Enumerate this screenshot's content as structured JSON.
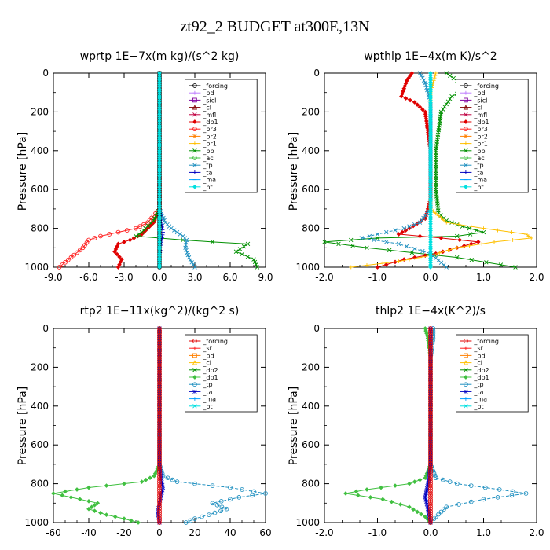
{
  "title": "zt92_2  BUDGET at300E,13N",
  "chart_data": [
    {
      "type": "line",
      "title": "wprtp   1E−7x(m kg)/(s^2 kg)",
      "ylabel": "Pressure [hPa]",
      "xlim": [
        -9,
        9
      ],
      "ylim": [
        1000,
        0
      ],
      "xticks": [
        "-9.0",
        "-6.0",
        "-3.0",
        "0.0",
        "3.0",
        "6.0",
        "9.0"
      ],
      "yticks": [
        "0",
        "200",
        "400",
        "600",
        "800",
        "1000"
      ],
      "legend": [
        "_forcing",
        "_pd",
        "_sicl",
        "_cl",
        "_mfl",
        "_dp1",
        "_pr3",
        "_pr2",
        "_pr1",
        "_bp",
        "_ac",
        "_tp",
        "_ta",
        "_ma",
        "_bt"
      ],
      "colors": [
        "#000000",
        "#c080ff",
        "#8000a0",
        "#800000",
        "#c00040",
        "#e00000",
        "#ff2020",
        "#ff8000",
        "#ffc000",
        "#009000",
        "#40c040",
        "#2090c0",
        "#0000c0",
        "#00a0ff",
        "#00e0e0"
      ],
      "series": [
        {
          "name": "_dp1",
          "x": [
            0,
            0,
            0,
            0,
            -0.5,
            -1,
            -1.5,
            -2.5,
            -3.5,
            -3.8,
            -3.2,
            -3.5
          ],
          "y": [
            0,
            200,
            400,
            700,
            770,
            800,
            830,
            860,
            880,
            920,
            960,
            1000
          ]
        },
        {
          "name": "_pr3",
          "x": [
            0,
            0,
            0,
            0,
            -1,
            -2,
            -3.5,
            -5,
            -6,
            -6.5,
            -7.5,
            -8.5
          ],
          "y": [
            0,
            200,
            400,
            700,
            770,
            800,
            820,
            840,
            860,
            900,
            950,
            1000
          ]
        },
        {
          "name": "_bp",
          "x": [
            0,
            0,
            0,
            0,
            -0.5,
            -1.2,
            -1.5,
            -2,
            2,
            4.5,
            7.5,
            6.5,
            8,
            8.3
          ],
          "y": [
            0,
            200,
            400,
            700,
            760,
            800,
            820,
            840,
            860,
            870,
            880,
            920,
            960,
            1000
          ]
        },
        {
          "name": "_tp",
          "x": [
            0,
            0,
            0,
            0,
            0.5,
            1,
            1.5,
            2,
            2.3,
            2.2,
            2.5,
            3
          ],
          "y": [
            0,
            200,
            400,
            700,
            770,
            800,
            820,
            840,
            860,
            900,
            950,
            1000
          ]
        },
        {
          "name": "_ta",
          "x": [
            0,
            0,
            0,
            0,
            0.2,
            0.3,
            0.2,
            0.1,
            0,
            0
          ],
          "y": [
            0,
            200,
            400,
            700,
            780,
            820,
            860,
            900,
            950,
            1000
          ]
        },
        {
          "name": "_forcing",
          "x": [
            0,
            0,
            0,
            0,
            0,
            0
          ],
          "y": [
            0,
            200,
            400,
            600,
            800,
            1000
          ]
        },
        {
          "name": "_bt",
          "x": [
            0,
            0,
            0,
            0,
            0,
            0
          ],
          "y": [
            0,
            200,
            400,
            600,
            800,
            1000
          ]
        }
      ]
    },
    {
      "type": "line",
      "title": "wpthlp   1E−4x(m K)/s^2",
      "ylabel": "Pressure [hPa]",
      "xlim": [
        -2,
        2
      ],
      "ylim": [
        1000,
        0
      ],
      "xticks": [
        "-2.0",
        "-1.0",
        "0.0",
        "1.0",
        "2.0"
      ],
      "yticks": [
        "0",
        "200",
        "400",
        "600",
        "800",
        "1000"
      ],
      "legend": [
        "_forcing",
        "_pd",
        "_sicl",
        "_cl",
        "_mfl",
        "_dp1",
        "_pr3",
        "_pr2",
        "_pr1",
        "_bp",
        "_ac",
        "_tp",
        "_ta",
        "_ma",
        "_bt"
      ],
      "colors": [
        "#000000",
        "#c080ff",
        "#8000a0",
        "#800000",
        "#c00040",
        "#e00000",
        "#ff2020",
        "#ff8000",
        "#ffc000",
        "#009000",
        "#40c040",
        "#2090c0",
        "#0000c0",
        "#00a0ff",
        "#00e0e0"
      ],
      "series": [
        {
          "name": "_bp",
          "x": [
            0.3,
            0.5,
            0.7,
            0.4,
            0.3,
            0.2,
            0.1,
            0.1,
            0.15,
            0.3,
            0.6,
            1,
            0.5,
            -1,
            -2,
            -1.2,
            0.5,
            1.6
          ],
          "y": [
            0,
            40,
            80,
            120,
            160,
            200,
            400,
            600,
            720,
            760,
            790,
            820,
            840,
            850,
            870,
            900,
            950,
            1000
          ]
        },
        {
          "name": "_dp1",
          "x": [
            -0.35,
            -0.45,
            -0.5,
            -0.55,
            -0.3,
            -0.1,
            0,
            0,
            -0.1,
            -0.4,
            -0.6,
            0.2,
            0.9,
            0.5,
            0.1,
            -0.5,
            -1
          ],
          "y": [
            0,
            40,
            80,
            120,
            150,
            200,
            400,
            650,
            750,
            800,
            830,
            850,
            870,
            900,
            930,
            960,
            1000
          ]
        },
        {
          "name": "_pr1",
          "x": [
            0.1,
            0,
            0,
            0,
            0,
            0,
            0.3,
            1,
            1.8,
            1.9,
            1.2,
            0.5,
            0,
            -0.6,
            -1.5
          ],
          "y": [
            0,
            100,
            200,
            400,
            600,
            700,
            770,
            800,
            830,
            850,
            870,
            900,
            940,
            970,
            1000
          ]
        },
        {
          "name": "_tp",
          "x": [
            -0.2,
            -0.1,
            -0.05,
            0,
            0,
            0,
            -0.2,
            -0.5,
            -1,
            -1.3,
            -0.6,
            0,
            0.3
          ],
          "y": [
            0,
            50,
            100,
            150,
            400,
            700,
            770,
            800,
            830,
            850,
            880,
            930,
            1000
          ]
        },
        {
          "name": "_pd",
          "x": [
            0,
            0,
            0,
            0,
            0,
            0
          ],
          "y": [
            0,
            200,
            400,
            600,
            800,
            1000
          ]
        },
        {
          "name": "_bt",
          "x": [
            0,
            0,
            0,
            0,
            0,
            0
          ],
          "y": [
            0,
            200,
            400,
            600,
            800,
            1000
          ]
        }
      ]
    },
    {
      "type": "line",
      "title": "rtp2   1E−11x(kg^2)/(kg^2 s)",
      "ylabel": "Pressure [hPa]",
      "xlim": [
        -60,
        60
      ],
      "ylim": [
        1000,
        0
      ],
      "xticks": [
        "-60",
        "-40",
        "-20",
        "0",
        "20",
        "40",
        "60"
      ],
      "yticks": [
        "0",
        "200",
        "400",
        "600",
        "800",
        "1000"
      ],
      "legend": [
        "_forcing",
        "_sf",
        "_pd",
        "_cl",
        "_dp2",
        "_dp1",
        "_tp",
        "_ta",
        "_ma",
        "_bt"
      ],
      "colors": [
        "#e00000",
        "#ff2020",
        "#ff8000",
        "#ffc000",
        "#009000",
        "#40c040",
        "#2090c0",
        "#0000c0",
        "#00a0ff",
        "#00e0e0"
      ],
      "series": [
        {
          "name": "_dp1",
          "x": [
            0,
            0,
            0,
            0,
            -3,
            -10,
            -40,
            -60,
            -50,
            -35,
            -40,
            -30,
            -20,
            -12
          ],
          "y": [
            0,
            200,
            400,
            700,
            760,
            790,
            820,
            850,
            870,
            900,
            930,
            960,
            980,
            1000
          ]
        },
        {
          "name": "_tp",
          "x": [
            0,
            0,
            0,
            0,
            2,
            10,
            40,
            60,
            45,
            30,
            38,
            28,
            20,
            15
          ],
          "y": [
            0,
            200,
            400,
            700,
            760,
            790,
            820,
            850,
            870,
            900,
            930,
            960,
            980,
            1000
          ]
        },
        {
          "name": "_ta",
          "x": [
            0,
            0,
            0,
            0,
            1,
            2,
            1,
            0,
            -1,
            0
          ],
          "y": [
            0,
            200,
            400,
            700,
            780,
            820,
            860,
            900,
            950,
            1000
          ]
        },
        {
          "name": "_forcing",
          "x": [
            0,
            0,
            0,
            0,
            0,
            0
          ],
          "y": [
            0,
            200,
            400,
            600,
            800,
            1000
          ]
        }
      ]
    },
    {
      "type": "line",
      "title": "thlp2   1E−4x(K^2)/s",
      "ylabel": "Pressure [hPa]",
      "xlim": [
        -2,
        2
      ],
      "ylim": [
        1000,
        0
      ],
      "xticks": [
        "-2.0",
        "-1.0",
        "0.0",
        "1.0",
        "2.0"
      ],
      "yticks": [
        "0",
        "200",
        "400",
        "600",
        "800",
        "1000"
      ],
      "legend": [
        "_forcing",
        "_sf",
        "_pd",
        "_cl",
        "_dp2",
        "_dp1",
        "_tp",
        "_ta",
        "_ma",
        "_bt"
      ],
      "colors": [
        "#e00000",
        "#ff2020",
        "#ff8000",
        "#ffc000",
        "#009000",
        "#40c040",
        "#2090c0",
        "#0000c0",
        "#00a0ff",
        "#00e0e0"
      ],
      "series": [
        {
          "name": "_dp1",
          "x": [
            -0.1,
            -0.05,
            0,
            0,
            0,
            -0.1,
            -0.4,
            -1.2,
            -1.6,
            -0.9,
            -0.4,
            -0.1,
            0
          ],
          "y": [
            0,
            50,
            150,
            400,
            700,
            770,
            800,
            830,
            850,
            880,
            920,
            970,
            1000
          ]
        },
        {
          "name": "_tp",
          "x": [
            0.05,
            0.05,
            0,
            0,
            0,
            0.1,
            0.5,
            1.3,
            1.8,
            1,
            0.3,
            0.1,
            0
          ],
          "y": [
            0,
            50,
            150,
            400,
            700,
            770,
            800,
            830,
            850,
            880,
            920,
            970,
            1000
          ]
        },
        {
          "name": "_ta",
          "x": [
            0,
            0,
            0,
            0,
            -0.05,
            -0.1,
            -0.05,
            0
          ],
          "y": [
            0,
            200,
            400,
            700,
            800,
            870,
            930,
            1000
          ]
        },
        {
          "name": "_forcing",
          "x": [
            0,
            0,
            0,
            0,
            0,
            0
          ],
          "y": [
            0,
            200,
            400,
            600,
            800,
            1000
          ]
        }
      ]
    }
  ]
}
